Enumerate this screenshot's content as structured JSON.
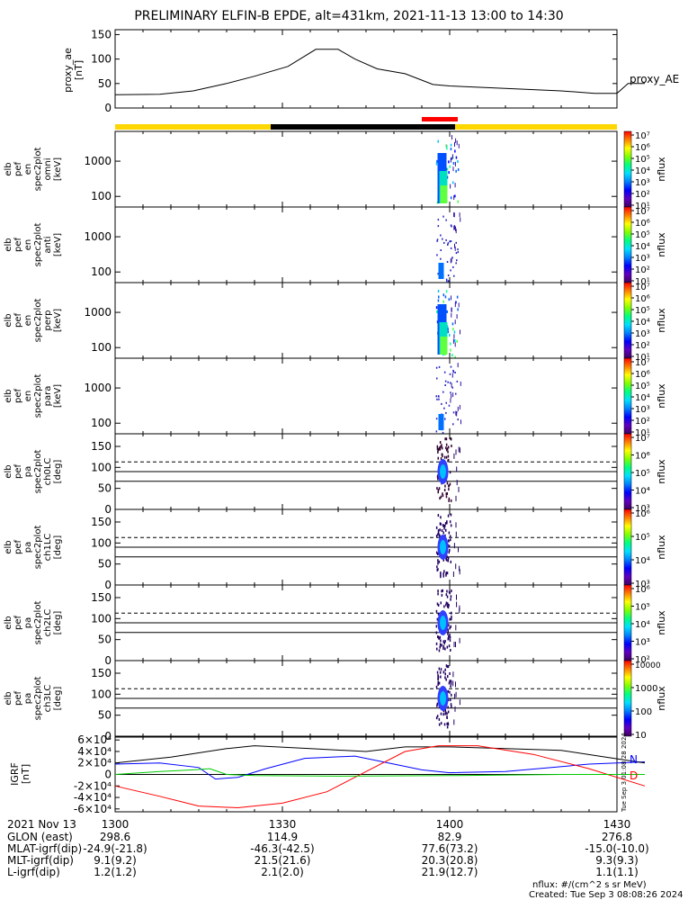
{
  "title": "PRELIMINARY ELFIN-B EPDE, alt=431km, 2021-11-13 13:00 to 14:30",
  "colors": {
    "bar_yellow": "#ffd700",
    "bar_black": "#000000",
    "bar_red": "#ff0000",
    "n_color": "#0000ff",
    "d_color": "#ff0000"
  },
  "chart_data": [
    {
      "type": "line",
      "panel": "proxy_ae",
      "ylabel": [
        "proxy_ae",
        "[nT]"
      ],
      "legend": "proxy_AE",
      "ylim": [
        0,
        160
      ],
      "yticks": [
        "0",
        "50",
        "100",
        "150"
      ],
      "x_minutes": [
        0,
        8,
        14,
        20,
        25,
        31,
        36,
        40,
        43,
        47,
        52,
        57,
        60,
        70,
        80,
        86,
        90,
        92,
        95
      ],
      "values": [
        27,
        28,
        35,
        50,
        65,
        85,
        120,
        120,
        100,
        80,
        70,
        48,
        45,
        40,
        35,
        30,
        30,
        50,
        50
      ]
    },
    {
      "type": "heatmap",
      "panel": "pef_en_omni",
      "ylabel": [
        "elb",
        "pef",
        "en",
        "spec2plot",
        "omni",
        "[keV]"
      ],
      "log_y": true,
      "yticks": [
        "100",
        "1000"
      ],
      "cbar_label": "nflux",
      "cbar_ticks": [
        "10¹",
        "10²",
        "10³",
        "10⁴",
        "10⁵",
        "10⁶",
        "10⁷"
      ]
    },
    {
      "type": "heatmap",
      "panel": "pef_en_anti",
      "ylabel": [
        "elb",
        "pef",
        "en",
        "spec2plot",
        "anti",
        "[keV]"
      ],
      "log_y": true,
      "yticks": [
        "100",
        "1000"
      ],
      "cbar_label": "nflux",
      "cbar_ticks": [
        "10¹",
        "10²",
        "10³",
        "10⁴",
        "10⁵",
        "10⁶",
        "10⁷"
      ]
    },
    {
      "type": "heatmap",
      "panel": "pef_en_perp",
      "ylabel": [
        "elb",
        "pef",
        "en",
        "spec2plot",
        "perp",
        "[keV]"
      ],
      "log_y": true,
      "yticks": [
        "100",
        "1000"
      ],
      "cbar_label": "nflux",
      "cbar_ticks": [
        "10¹",
        "10²",
        "10³",
        "10⁴",
        "10⁵",
        "10⁶",
        "10⁷"
      ]
    },
    {
      "type": "heatmap",
      "panel": "pef_en_para",
      "ylabel": [
        "elb",
        "pef",
        "en",
        "spec2plot",
        "para",
        "[keV]"
      ],
      "log_y": true,
      "yticks": [
        "100",
        "1000"
      ],
      "cbar_label": "nflux",
      "cbar_ticks": [
        "10¹",
        "10²",
        "10³",
        "10⁴",
        "10⁵",
        "10⁶",
        "10⁷"
      ]
    },
    {
      "type": "heatmap",
      "panel": "pef_pa_ch0LC",
      "ylabel": [
        "elb",
        "pef",
        "pa",
        "spec2plot",
        "ch0LC",
        "[deg]"
      ],
      "ylim": [
        0,
        180
      ],
      "yticks": [
        "0",
        "50",
        "100",
        "150"
      ],
      "lines_deg": [
        67,
        90,
        113
      ],
      "cbar_label": "nflux",
      "cbar_ticks": [
        "10³",
        "10⁴",
        "10⁵",
        "10⁶",
        "10⁷"
      ]
    },
    {
      "type": "heatmap",
      "panel": "pef_pa_ch1LC",
      "ylabel": [
        "elb",
        "pef",
        "pa",
        "spec2plot",
        "ch1LC",
        "[deg]"
      ],
      "ylim": [
        0,
        180
      ],
      "yticks": [
        "0",
        "50",
        "100",
        "150"
      ],
      "lines_deg": [
        67,
        90,
        113
      ],
      "cbar_label": "nflux",
      "cbar_ticks": [
        "10³",
        "10⁴",
        "10⁵",
        "10⁶"
      ]
    },
    {
      "type": "heatmap",
      "panel": "pef_pa_ch2LC",
      "ylabel": [
        "elb",
        "pef",
        "pa",
        "spec2plot",
        "ch2LC",
        "[deg]"
      ],
      "ylim": [
        0,
        180
      ],
      "yticks": [
        "0",
        "50",
        "100",
        "150"
      ],
      "lines_deg": [
        67,
        90,
        113
      ],
      "cbar_label": "nflux",
      "cbar_ticks": [
        "10²",
        "10³",
        "10⁴",
        "10⁵",
        "10⁶"
      ]
    },
    {
      "type": "heatmap",
      "panel": "pef_pa_ch3LC",
      "ylabel": [
        "elb",
        "pef",
        "pa",
        "spec2plot",
        "ch3LC",
        "[deg]"
      ],
      "ylim": [
        0,
        180
      ],
      "yticks": [
        "0",
        "50",
        "100",
        "150"
      ],
      "lines_deg": [
        67,
        90,
        113
      ],
      "cbar_label": "nflux",
      "cbar_ticks": [
        "10",
        "100",
        "1000",
        "10000"
      ]
    },
    {
      "type": "line",
      "panel": "igrf",
      "ylabel": [
        "IGRF",
        "[nT]"
      ],
      "ylim": [
        -65000,
        65000
      ],
      "yticks": [
        "-6×10⁴",
        "-4×10⁴",
        "-2×10⁴",
        "0",
        "2×10⁴",
        "4×10⁴",
        "6×10⁴"
      ],
      "legend": [
        "N",
        "D"
      ],
      "side_note": "Tue Sep 3 01:08:28 2024",
      "series": [
        {
          "name": "N",
          "color": "#0000ff",
          "x_minutes": [
            0,
            8,
            15,
            18,
            22,
            27,
            34,
            43,
            50,
            55,
            60,
            70,
            85,
            95
          ],
          "values": [
            18000,
            20000,
            12000,
            -8000,
            -5000,
            10000,
            28000,
            32000,
            18000,
            8000,
            3000,
            5000,
            18000,
            22000
          ]
        },
        {
          "name": "",
          "color": "#000000",
          "x_minutes": [
            0,
            10,
            20,
            25,
            35,
            45,
            52,
            60,
            70,
            80,
            88,
            95
          ],
          "values": [
            20000,
            30000,
            45000,
            50000,
            45000,
            40000,
            48000,
            48000,
            45000,
            42000,
            30000,
            20000
          ]
        },
        {
          "name": "D",
          "color": "#ff0000",
          "x_minutes": [
            0,
            8,
            15,
            22,
            30,
            38,
            45,
            52,
            58,
            65,
            75,
            85,
            95
          ],
          "values": [
            -20000,
            -38000,
            -55000,
            -58000,
            -50000,
            -30000,
            5000,
            40000,
            50000,
            50000,
            35000,
            10000,
            -20000
          ]
        },
        {
          "name": "",
          "color": "#00cc00",
          "x_minutes": [
            0,
            8,
            14,
            17,
            20,
            25,
            40,
            60,
            80,
            95
          ],
          "values": [
            0,
            5000,
            8000,
            10000,
            0,
            -2000,
            -3000,
            -2000,
            0,
            0
          ]
        }
      ]
    }
  ],
  "footer": {
    "columns": [
      "2021 Nov 13",
      "1300",
      "1330",
      "1400",
      "1430"
    ],
    "rows": [
      {
        "label": "GLON (east)",
        "values": [
          "298.6",
          "114.9",
          "82.9",
          "276.8"
        ]
      },
      {
        "label": "MLAT-igrf(dip)",
        "values": [
          "-24.9(-21.8)",
          "-46.3(-42.5)",
          "77.6(73.2)",
          "-15.0(-10.0)"
        ]
      },
      {
        "label": "MLT-igrf(dip)",
        "values": [
          "9.1(9.2)",
          "21.5(21.6)",
          "20.3(20.8)",
          "9.3(9.3)"
        ]
      },
      {
        "label": "L-igrf(dip)",
        "values": [
          "1.2(1.2)",
          "2.1(2.0)",
          "21.9(12.7)",
          "1.1(1.1)"
        ]
      }
    ],
    "units": "nflux: #/(cm^2 s sr MeV)",
    "created": "Created: Tue Sep  3 08:08:26 2024"
  }
}
